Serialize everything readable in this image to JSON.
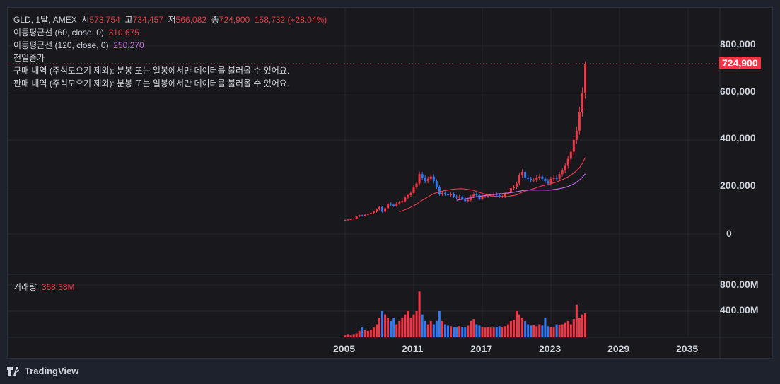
{
  "legend": {
    "symbol": "GLD, 1달, AMEX",
    "open_label": "시",
    "open": "573,754",
    "high_label": "고",
    "high": "734,457",
    "low_label": "저",
    "low": "566,082",
    "close_label": "종",
    "close": "724,900",
    "change": "158,732 (+28.04%)",
    "ma60_label": "이동평균선 (60, close, 0)",
    "ma60_value": "310,675",
    "ma120_label": "이동평균선 (120, close, 0)",
    "ma120_value": "250,270",
    "prev_close_label": "전일종가",
    "buy_note": "구매 내역 (주식모으기 제외): 분봉 또는 일봉에서만 데이터를 불러올 수 있어요.",
    "sell_note": "판매 내역 (주식모으기 제외): 분봉 또는 일봉에서만 데이터를 불러올 수 있어요."
  },
  "volume_legend": {
    "label": "거래량",
    "value": "368.38M"
  },
  "current_price_tag": "724,900",
  "price_axis_ticks": [
    "800,000",
    "600,000",
    "400,000",
    "200,000",
    "0"
  ],
  "volume_axis_ticks": [
    "800.00M",
    "400.00M"
  ],
  "time_axis_ticks": [
    "2005",
    "2011",
    "2017",
    "2023",
    "2029",
    "2035"
  ],
  "branding": "TradingView",
  "colors": {
    "up": "#f23645",
    "down": "#2f7bf5",
    "ma60": "#e0394b",
    "ma120": "#c36be0",
    "background": "#18181d"
  },
  "chart_data": {
    "type": "candlestick",
    "interval": "1 month (shown approximated quarterly)",
    "x_start": 2005.0,
    "x_step_years": 0.25,
    "ylim": [
      0,
      800000
    ],
    "xlim": [
      2005,
      2035
    ],
    "grid": true,
    "closes_thousands": [
      60,
      62,
      63,
      66,
      75,
      80,
      78,
      82,
      85,
      90,
      95,
      105,
      115,
      95,
      110,
      130,
      125,
      120,
      130,
      135,
      140,
      155,
      165,
      175,
      200,
      215,
      255,
      240,
      225,
      235,
      245,
      225,
      200,
      170,
      175,
      170,
      165,
      170,
      160,
      155,
      160,
      150,
      140,
      145,
      160,
      170,
      165,
      150,
      160,
      160,
      165,
      165,
      170,
      165,
      160,
      160,
      170,
      175,
      195,
      200,
      215,
      250,
      265,
      240,
      235,
      230,
      230,
      240,
      245,
      235,
      225,
      215,
      235,
      240,
      235,
      255,
      270,
      290,
      320,
      350,
      400,
      440,
      520,
      600,
      724.9
    ],
    "volumes_millions": [
      30,
      40,
      30,
      40,
      60,
      100,
      150,
      110,
      100,
      120,
      150,
      200,
      300,
      400,
      350,
      300,
      250,
      300,
      200,
      250,
      300,
      350,
      400,
      300,
      350,
      400,
      700,
      350,
      250,
      200,
      250,
      200,
      250,
      400,
      250,
      200,
      180,
      170,
      160,
      150,
      170,
      160,
      150,
      180,
      250,
      280,
      200,
      180,
      160,
      150,
      160,
      150,
      150,
      160,
      170,
      160,
      170,
      200,
      250,
      270,
      400,
      350,
      300,
      250,
      200,
      180,
      190,
      170,
      200,
      180,
      300,
      170,
      160,
      150,
      200,
      190,
      200,
      220,
      250,
      200,
      280,
      500,
      300,
      350,
      368.38
    ],
    "moving_averages": [
      {
        "name": "이동평균선 (60, close, 0)",
        "last": 310675
      },
      {
        "name": "이동평균선 (120, close, 0)",
        "last": 250270
      }
    ]
  }
}
